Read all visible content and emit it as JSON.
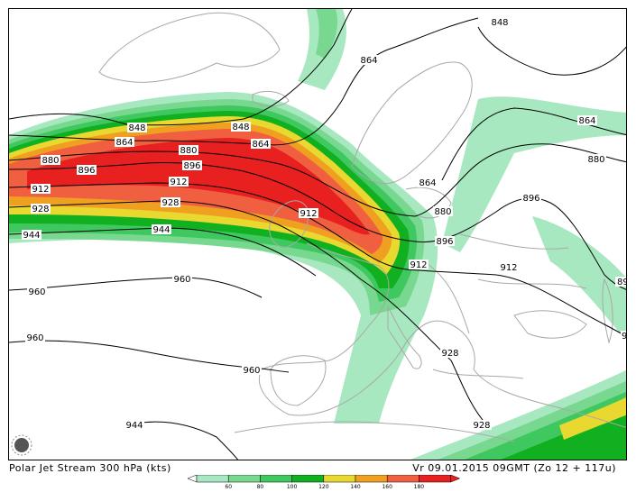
{
  "title": "Polar Jet Stream 300 hPa (kts)",
  "valid_time": "Vr 09.01.2015 09GMT (Zo 12 + 117u)",
  "legend": {
    "levels": [
      "60",
      "80",
      "100",
      "120",
      "140",
      "160",
      "180"
    ],
    "colors": [
      "#a8e8c0",
      "#78d890",
      "#40c860",
      "#10b020",
      "#e8d830",
      "#f0a020",
      "#f06040",
      "#e82020"
    ]
  },
  "contour_labels": [
    "848",
    "864",
    "880",
    "896",
    "912",
    "928",
    "944",
    "960",
    "89",
    "9"
  ],
  "palette": {
    "coast": "#a8a8a8",
    "contour": "#000000",
    "frame": "#000000"
  }
}
